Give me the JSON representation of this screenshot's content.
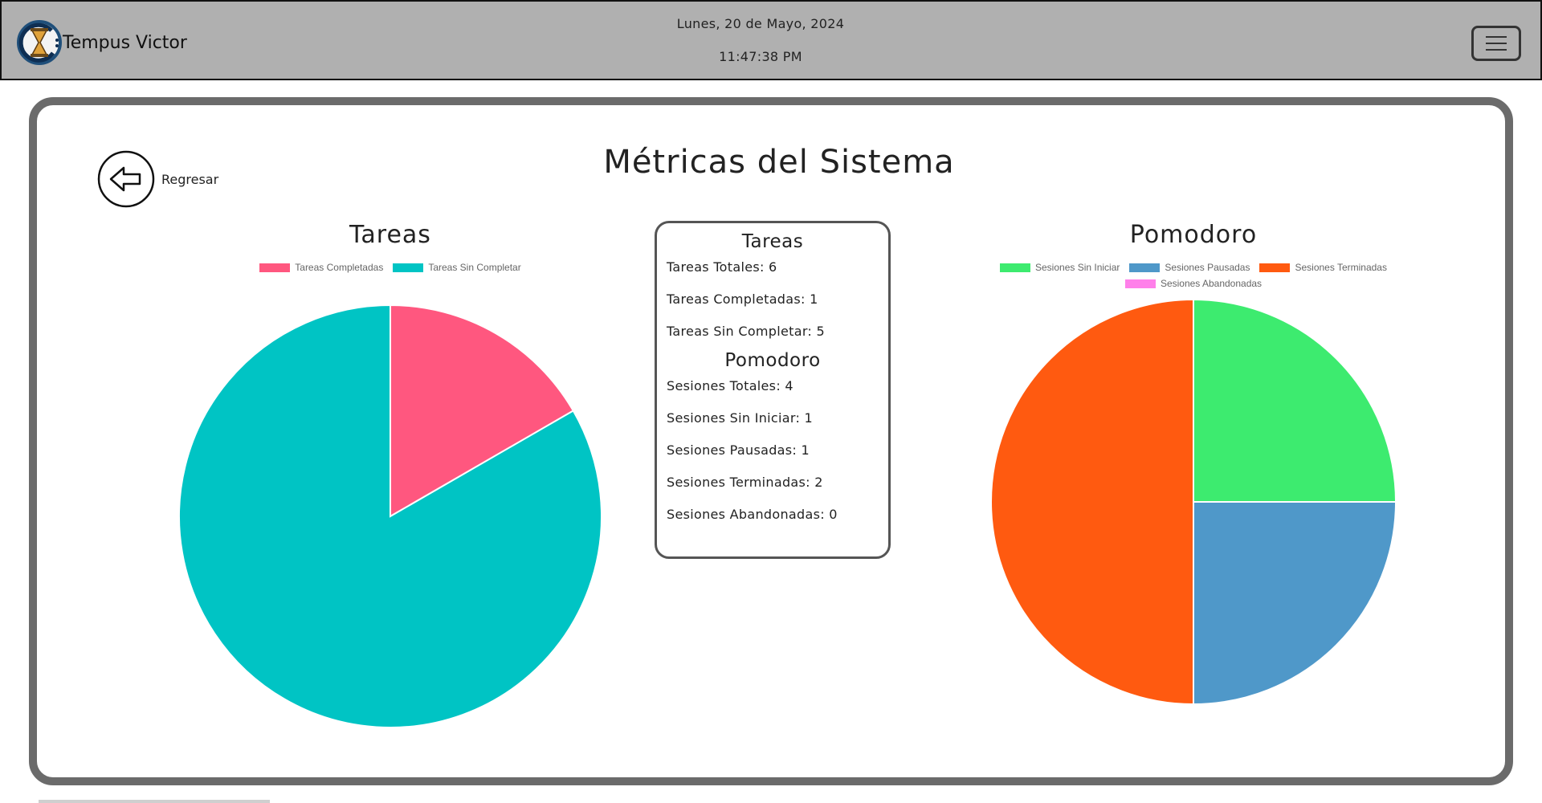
{
  "header": {
    "brand": "Tempus Victor",
    "date": "Lunes, 20 de Mayo, 2024",
    "time": "11:47:38 PM",
    "icons": {
      "logo": "hourglass-logo-icon",
      "menu": "hamburger-menu-icon"
    }
  },
  "page": {
    "title": "Métricas del Sistema",
    "back_label": "Regresar",
    "back_icon": "arrow-left-icon"
  },
  "stats": {
    "tareas_heading": "Tareas",
    "tareas_lines": [
      "Tareas Totales: 6",
      "Tareas Completadas: 1",
      "Tareas Sin Completar: 5"
    ],
    "pomodoro_heading": "Pomodoro",
    "pomodoro_lines": [
      "Sesiones Totales: 4",
      "Sesiones Sin Iniciar: 1",
      "Sesiones Pausadas: 1",
      "Sesiones Terminadas: 2",
      "Sesiones Abandonadas: 0"
    ]
  },
  "chart_data": [
    {
      "type": "pie",
      "title": "Tareas",
      "legend": "top",
      "categories": [
        "Tareas Completadas",
        "Tareas Sin Completar"
      ],
      "values": [
        1,
        5
      ],
      "colors": [
        "#ff577f",
        "#00c4c4"
      ]
    },
    {
      "type": "pie",
      "title": "Pomodoro",
      "legend": "top",
      "categories": [
        "Sesiones Sin Iniciar",
        "Sesiones Pausadas",
        "Sesiones Terminadas",
        "Sesiones Abandonadas"
      ],
      "values": [
        1,
        1,
        2,
        0
      ],
      "colors": [
        "#3deb6f",
        "#4f98c9",
        "#ff5a10",
        "#ff80ea"
      ]
    }
  ]
}
